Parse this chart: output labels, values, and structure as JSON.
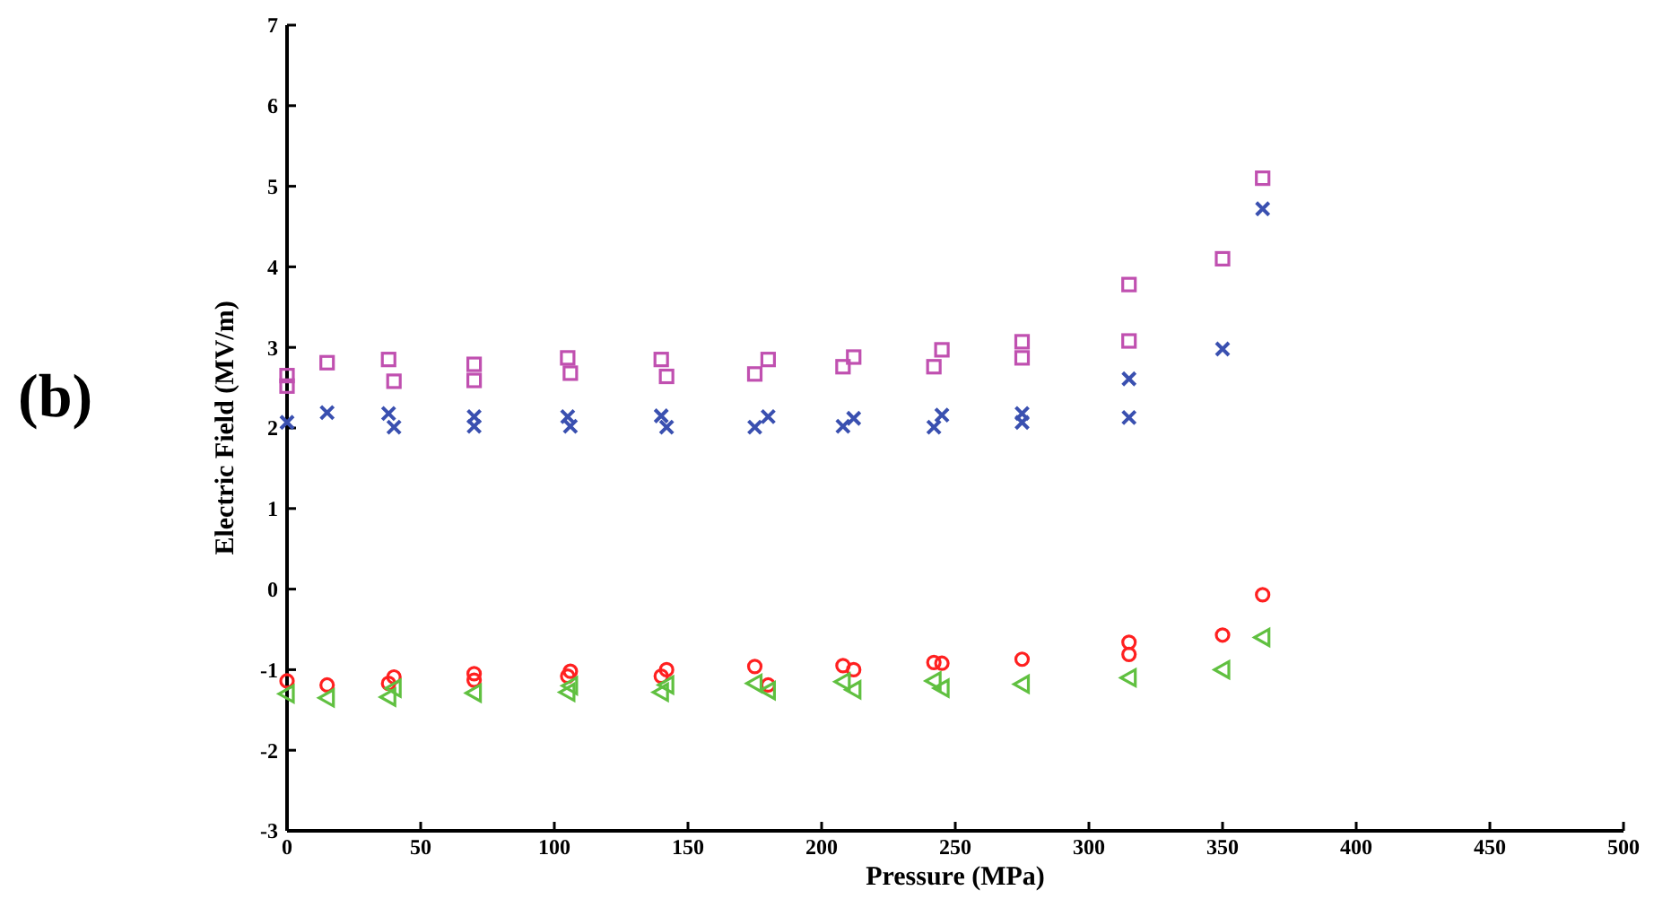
{
  "chart_data": {
    "type": "scatter",
    "xlabel": "Pressure (MPa)",
    "ylabel": "Electric Field (MV/m)",
    "annotations": [
      "(b)"
    ],
    "xlim": [
      0,
      500
    ],
    "xticks": [
      0,
      50,
      100,
      150,
      200,
      250,
      300,
      350,
      400,
      450,
      500
    ],
    "ylim": [
      -3,
      7
    ],
    "yticks": [
      -3,
      -2,
      -1,
      0,
      1,
      2,
      3,
      4,
      5,
      6,
      7
    ],
    "grid": false,
    "series": [
      {
        "color": "#c050b0",
        "marker": "square",
        "x": [
          0,
          0,
          15,
          38,
          40,
          70,
          70,
          105,
          106,
          140,
          142,
          175,
          180,
          208,
          212,
          242,
          245,
          275,
          275,
          315,
          315,
          350,
          365
        ],
        "values": [
          2.65,
          2.52,
          2.81,
          2.85,
          2.58,
          2.79,
          2.59,
          2.87,
          2.68,
          2.85,
          2.64,
          2.67,
          2.85,
          2.76,
          2.88,
          2.76,
          2.97,
          3.07,
          2.87,
          3.78,
          3.08,
          4.1,
          5.1
        ]
      },
      {
        "color": "#3a50b0",
        "marker": "cross",
        "x": [
          0,
          15,
          38,
          40,
          70,
          70,
          105,
          106,
          140,
          142,
          175,
          180,
          208,
          212,
          242,
          245,
          275,
          275,
          315,
          315,
          350,
          365
        ],
        "values": [
          2.07,
          2.19,
          2.18,
          2.01,
          2.14,
          2.02,
          2.14,
          2.02,
          2.15,
          2.01,
          2.01,
          2.14,
          2.02,
          2.12,
          2.01,
          2.16,
          2.18,
          2.07,
          2.61,
          2.13,
          2.98,
          4.72
        ]
      },
      {
        "color": "#ff2020",
        "marker": "circle",
        "x": [
          0,
          15,
          38,
          40,
          70,
          70,
          105,
          106,
          140,
          142,
          175,
          180,
          208,
          212,
          242,
          245,
          275,
          315,
          315,
          350,
          365
        ],
        "values": [
          -1.14,
          -1.19,
          -1.17,
          -1.09,
          -1.05,
          -1.13,
          -1.08,
          -1.02,
          -1.08,
          -1.0,
          -0.96,
          -1.19,
          -0.95,
          -1.0,
          -0.91,
          -0.92,
          -0.87,
          -0.66,
          -0.81,
          -0.57,
          -0.07
        ]
      },
      {
        "color": "#60c040",
        "marker": "triangle",
        "x": [
          0,
          15,
          38,
          40,
          70,
          105,
          106,
          140,
          142,
          175,
          180,
          208,
          212,
          242,
          245,
          275,
          315,
          350,
          365
        ],
        "values": [
          -1.3,
          -1.35,
          -1.34,
          -1.23,
          -1.29,
          -1.28,
          -1.2,
          -1.28,
          -1.19,
          -1.17,
          -1.26,
          -1.15,
          -1.25,
          -1.14,
          -1.23,
          -1.18,
          -1.1,
          -1.0,
          -0.6
        ]
      }
    ]
  }
}
